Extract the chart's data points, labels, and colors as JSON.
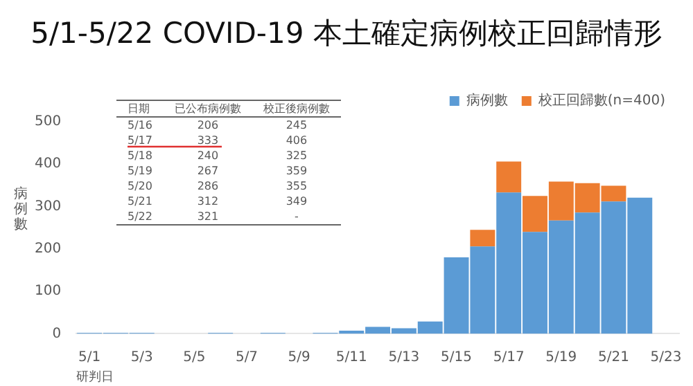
{
  "chart_data": {
    "type": "bar",
    "title": "5/1-5/22 COVID-19 本土確定病例校正回歸情形",
    "xlabel": "研判日",
    "ylabel": "病例數",
    "categories": [
      "5/1",
      null,
      "5/3",
      null,
      "5/5",
      null,
      "5/7",
      null,
      "5/9",
      null,
      "5/11",
      null,
      "5/13",
      null,
      "5/15",
      null,
      "5/17",
      null,
      "5/19",
      null,
      "5/21",
      null,
      "5/23"
    ],
    "series": [
      {
        "name": "病例數",
        "color": "#5b9bd5",
        "values": [
          2,
          2,
          2,
          0,
          0,
          2,
          0,
          2,
          0,
          2,
          7,
          16,
          13,
          29,
          180,
          206,
          333,
          240,
          267,
          286,
          312,
          321,
          null
        ]
      },
      {
        "name": "校正回歸數(n=400)",
        "color": "#ed7d31",
        "values": [
          null,
          null,
          null,
          null,
          null,
          null,
          null,
          null,
          null,
          null,
          null,
          null,
          null,
          null,
          null,
          39,
          73,
          85,
          92,
          69,
          37,
          null,
          null
        ]
      }
    ],
    "stacked": true,
    "ylim": [
      0,
      500
    ],
    "yticks": [
      0,
      100,
      200,
      300,
      400,
      500
    ],
    "grid": false,
    "legend": "top right",
    "annotations": [
      "日期",
      "已公布病例數",
      "校正後病例數",
      "5/16",
      "206",
      "245",
      "5/17",
      "333",
      "406",
      "5/18",
      "240",
      "325",
      "5/19",
      "267",
      "359",
      "5/20",
      "286",
      "355",
      "5/21",
      "312",
      "349",
      "5/22",
      "321",
      "-"
    ]
  }
}
